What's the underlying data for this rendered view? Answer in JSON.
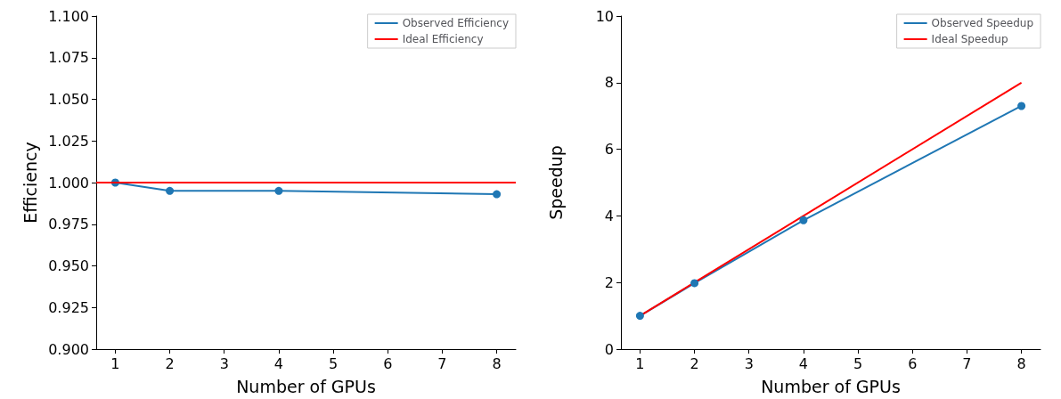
{
  "chart_data": [
    {
      "type": "line",
      "xlabel": "Number of GPUs",
      "ylabel": "Efficiency",
      "x": [
        1,
        2,
        4,
        8
      ],
      "xlim": [
        0.65,
        8.35
      ],
      "xticks": [
        1,
        2,
        3,
        4,
        5,
        6,
        7,
        8
      ],
      "ylim": [
        0.9,
        1.1
      ],
      "yticks": [
        {
          "value": 0.9,
          "label": "0.900"
        },
        {
          "value": 0.925,
          "label": "0.925"
        },
        {
          "value": 0.95,
          "label": "0.950"
        },
        {
          "value": 0.975,
          "label": "0.975"
        },
        {
          "value": 1.0,
          "label": "1.000"
        },
        {
          "value": 1.025,
          "label": "1.025"
        },
        {
          "value": 1.05,
          "label": "1.050"
        },
        {
          "value": 1.075,
          "label": "1.075"
        },
        {
          "value": 1.1,
          "label": "1.100"
        }
      ],
      "series": [
        {
          "name": "Observed Efficiency",
          "color": "#1f77b4",
          "values": [
            1.0,
            0.995,
            0.995,
            0.993
          ],
          "marker": "circle"
        }
      ],
      "ref_lines": [
        {
          "axis": "y",
          "value": 1.0,
          "label": "Ideal Efficiency",
          "color": "#ff0000"
        }
      ],
      "grid": false,
      "legend": "top right"
    },
    {
      "type": "line",
      "xlabel": "Number of GPUs",
      "ylabel": "Speedup",
      "x": [
        1,
        2,
        4,
        8
      ],
      "xlim": [
        0.65,
        8.35
      ],
      "xticks": [
        1,
        2,
        3,
        4,
        5,
        6,
        7,
        8
      ],
      "ylim": [
        0,
        10
      ],
      "yticks": [
        0,
        2,
        4,
        6,
        8,
        10
      ],
      "series": [
        {
          "name": "Observed Speedup",
          "color": "#1f77b4",
          "values": [
            1.0,
            1.98,
            3.87,
            7.3
          ],
          "marker": "circle"
        },
        {
          "name": "Ideal Speedup",
          "color": "#ff0000",
          "values": [
            1,
            2,
            4,
            8
          ],
          "marker": "none"
        }
      ],
      "grid": false,
      "legend": "top right"
    }
  ]
}
